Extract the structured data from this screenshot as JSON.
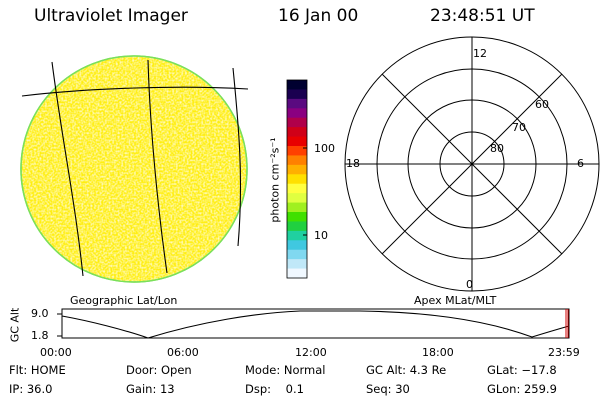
{
  "header": {
    "instrument": "Ultraviolet Imager",
    "date": "16 Jan 00",
    "time": "23:48:51 UT"
  },
  "colorbar": {
    "unit_label": "photon cm⁻²s⁻¹",
    "ticks": [
      "100",
      "10"
    ],
    "colors": [
      "#000030",
      "#1a0050",
      "#5a0a80",
      "#8a0080",
      "#b0004a",
      "#d00018",
      "#e80000",
      "#ff4000",
      "#ff8000",
      "#ffb000",
      "#ffe000",
      "#ffff40",
      "#e0ff40",
      "#a0f020",
      "#40e000",
      "#20d040",
      "#20d0a0",
      "#40c8e0",
      "#80d8f0",
      "#c0e8f8",
      "#f0f8ff"
    ]
  },
  "panels": {
    "geo_label": "Geographic Lat/Lon",
    "apex_label": "Apex MLat/MLT"
  },
  "polar": {
    "mlt_labels": {
      "top": "12",
      "left": "18",
      "right": "6",
      "bottom": "0"
    },
    "mlat_labels": [
      "60",
      "70",
      "80"
    ]
  },
  "alt_plot": {
    "ylabel": "GC Alt",
    "yticks": [
      "9.0",
      "1.8"
    ],
    "xticks": [
      "00:00",
      "06:00",
      "12:00",
      "18:00",
      "23:59"
    ]
  },
  "status": {
    "col1": [
      "Flt: HOME",
      "IP: 36.0"
    ],
    "col2": [
      "Door: Open",
      "Gain: 13"
    ],
    "col3": [
      "Mode: Normal",
      "Dsp:    0.1"
    ],
    "col4": [
      "GC Alt: 4.3 Re",
      "Seq: 30"
    ],
    "col5": [
      "GLat: −17.8",
      "GLon: 259.9"
    ]
  }
}
